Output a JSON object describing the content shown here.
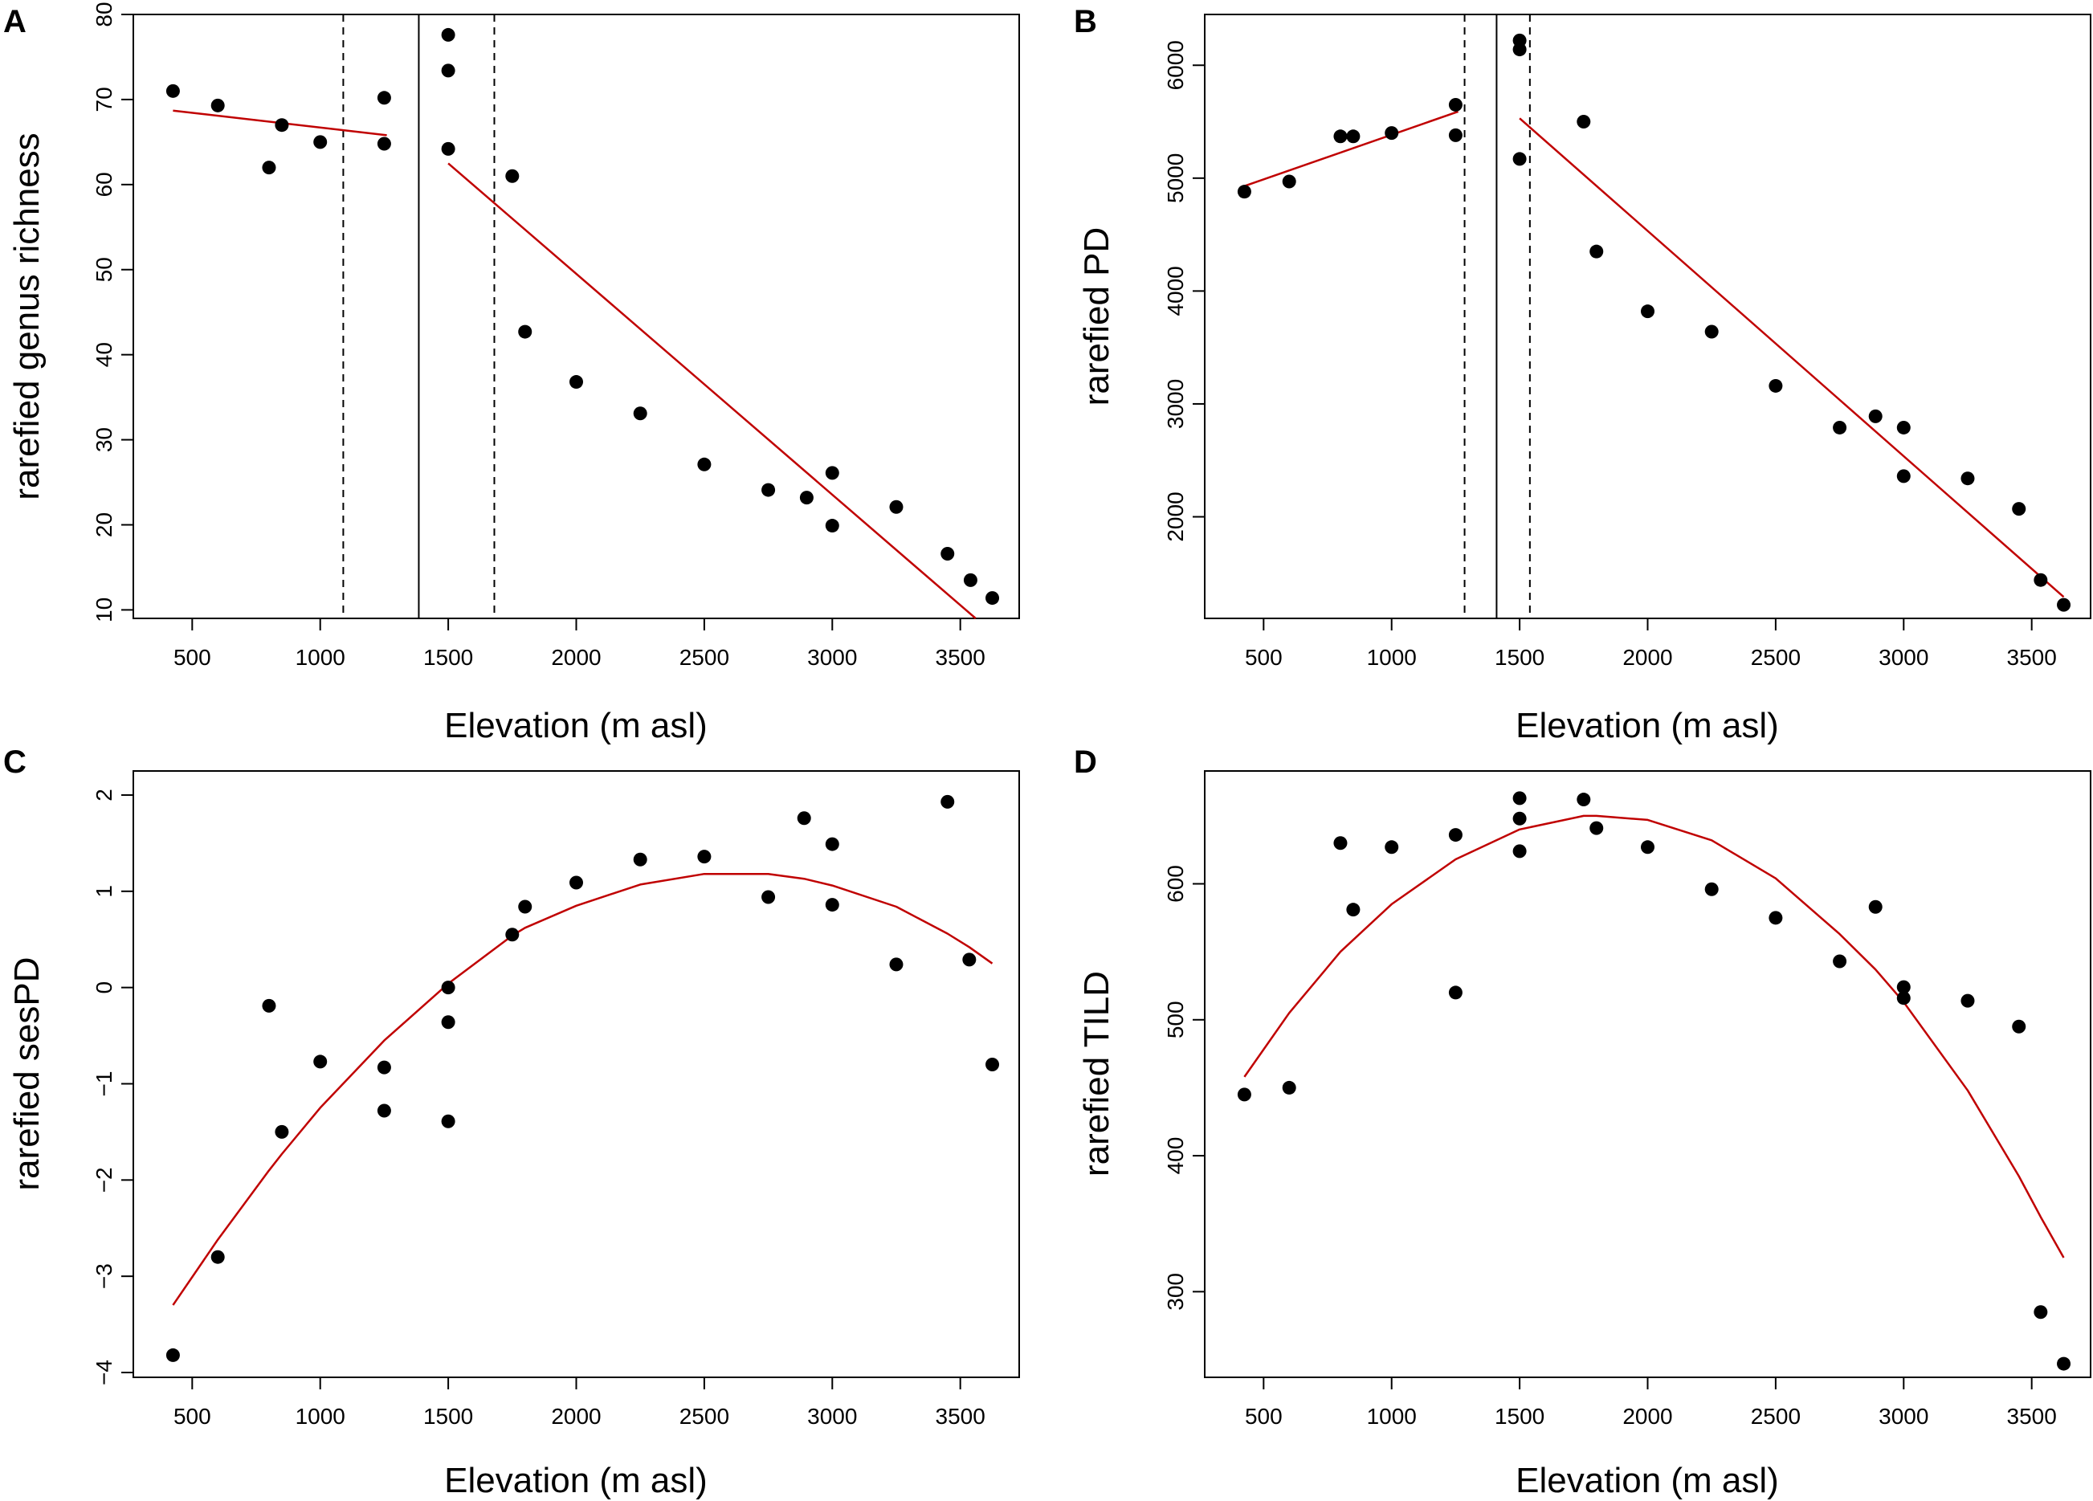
{
  "figure": {
    "background": "#ffffff",
    "point_color": "#000000",
    "fit_color": "#c00000"
  },
  "chart_data": [
    {
      "panel": "A",
      "type": "scatter",
      "xlabel": "Elevation (m asl)",
      "ylabel": "rarefied genus richness",
      "xlim": [
        270,
        3730
      ],
      "ylim": [
        9,
        80
      ],
      "xticks": [
        500,
        1000,
        1500,
        2000,
        2500,
        3000,
        3500
      ],
      "yticks": [
        10,
        20,
        30,
        40,
        50,
        60,
        70,
        80
      ],
      "points": [
        [
          425,
          71
        ],
        [
          600,
          69.3
        ],
        [
          800,
          62
        ],
        [
          850,
          67
        ],
        [
          1000,
          65
        ],
        [
          1250,
          70.2
        ],
        [
          1250,
          64.8
        ],
        [
          1500,
          77.6
        ],
        [
          1500,
          73.4
        ],
        [
          1500,
          64.2
        ],
        [
          1750,
          61
        ],
        [
          1800,
          42.7
        ],
        [
          2000,
          36.8
        ],
        [
          2250,
          33.1
        ],
        [
          2500,
          27.1
        ],
        [
          2750,
          24.1
        ],
        [
          2900,
          23.2
        ],
        [
          3000,
          26.1
        ],
        [
          3000,
          19.9
        ],
        [
          3250,
          22.1
        ],
        [
          3450,
          16.6
        ],
        [
          3540,
          13.5
        ],
        [
          3625,
          11.4
        ]
      ],
      "fits": [
        {
          "kind": "line",
          "points": [
            [
              425,
              68.7
            ],
            [
              1260,
              65.8
            ]
          ]
        },
        {
          "kind": "line",
          "points": [
            [
              1500,
              62.5
            ],
            [
              3560,
              9
            ]
          ]
        }
      ],
      "vlines": [
        {
          "x": 1385,
          "style": "solid"
        },
        {
          "x": 1090,
          "style": "dashed"
        },
        {
          "x": 1680,
          "style": "dashed"
        }
      ]
    },
    {
      "panel": "B",
      "type": "scatter",
      "xlabel": "Elevation (m asl)",
      "ylabel": "rarefied PD",
      "xlim": [
        270,
        3730
      ],
      "ylim": [
        1100,
        6450
      ],
      "xticks": [
        500,
        1000,
        1500,
        2000,
        2500,
        3000,
        3500
      ],
      "yticks": [
        2000,
        3000,
        4000,
        5000,
        6000
      ],
      "points": [
        [
          425,
          4880
        ],
        [
          600,
          4970
        ],
        [
          800,
          5370
        ],
        [
          850,
          5370
        ],
        [
          1000,
          5400
        ],
        [
          1250,
          5650
        ],
        [
          1250,
          5380
        ],
        [
          1500,
          6220
        ],
        [
          1500,
          6140
        ],
        [
          1500,
          5170
        ],
        [
          1750,
          5500
        ],
        [
          1800,
          4350
        ],
        [
          2000,
          3820
        ],
        [
          2250,
          3640
        ],
        [
          2500,
          3160
        ],
        [
          2750,
          2790
        ],
        [
          2890,
          2890
        ],
        [
          3000,
          2790
        ],
        [
          3000,
          2360
        ],
        [
          3250,
          2340
        ],
        [
          3450,
          2070
        ],
        [
          3535,
          1440
        ],
        [
          3625,
          1220
        ]
      ],
      "fits": [
        {
          "kind": "line",
          "points": [
            [
              425,
              4930
            ],
            [
              1260,
              5590
            ]
          ]
        },
        {
          "kind": "line",
          "points": [
            [
              1500,
              5530
            ],
            [
              3625,
              1290
            ]
          ]
        }
      ],
      "vlines": [
        {
          "x": 1410,
          "style": "solid"
        },
        {
          "x": 1285,
          "style": "dashed"
        },
        {
          "x": 1540,
          "style": "dashed"
        }
      ]
    },
    {
      "panel": "C",
      "type": "scatter",
      "xlabel": "Elevation (m asl)",
      "ylabel": "rarefied sesPD",
      "xlim": [
        270,
        3730
      ],
      "ylim": [
        -4.05,
        2.25
      ],
      "xticks": [
        500,
        1000,
        1500,
        2000,
        2500,
        3000,
        3500
      ],
      "yticks": [
        -4,
        -3,
        -2,
        -1,
        0,
        1,
        2
      ],
      "points": [
        [
          425,
          -3.82
        ],
        [
          600,
          -2.8
        ],
        [
          800,
          -0.19
        ],
        [
          850,
          -1.5
        ],
        [
          1000,
          -0.77
        ],
        [
          1250,
          -0.83
        ],
        [
          1250,
          -1.28
        ],
        [
          1500,
          0
        ],
        [
          1500,
          -0.36
        ],
        [
          1500,
          -1.39
        ],
        [
          1750,
          0.55
        ],
        [
          1800,
          0.84
        ],
        [
          2000,
          1.09
        ],
        [
          2250,
          1.33
        ],
        [
          2500,
          1.36
        ],
        [
          2750,
          0.94
        ],
        [
          2890,
          1.76
        ],
        [
          3000,
          1.49
        ],
        [
          3000,
          0.86
        ],
        [
          3250,
          0.24
        ],
        [
          3450,
          1.93
        ],
        [
          3535,
          0.29
        ],
        [
          3625,
          -0.8
        ]
      ],
      "fits": [
        {
          "kind": "curve",
          "points": [
            [
              425,
              -3.3
            ],
            [
              600,
              -2.62
            ],
            [
              800,
              -1.9
            ],
            [
              850,
              -1.73
            ],
            [
              1000,
              -1.25
            ],
            [
              1250,
              -0.55
            ],
            [
              1500,
              0.04
            ],
            [
              1750,
              0.54
            ],
            [
              1800,
              0.62
            ],
            [
              2000,
              0.85
            ],
            [
              2250,
              1.07
            ],
            [
              2500,
              1.18
            ],
            [
              2750,
              1.18
            ],
            [
              2890,
              1.13
            ],
            [
              3000,
              1.06
            ],
            [
              3250,
              0.84
            ],
            [
              3450,
              0.56
            ],
            [
              3535,
              0.42
            ],
            [
              3625,
              0.25
            ]
          ]
        }
      ],
      "vlines": []
    },
    {
      "panel": "D",
      "type": "scatter",
      "xlabel": "Elevation (m asl)",
      "ylabel": "rarefied TILD",
      "xlim": [
        270,
        3730
      ],
      "ylim": [
        237,
        683
      ],
      "xticks": [
        500,
        1000,
        1500,
        2000,
        2500,
        3000,
        3500
      ],
      "yticks": [
        300,
        400,
        500,
        600
      ],
      "points": [
        [
          425,
          445
        ],
        [
          600,
          450
        ],
        [
          800,
          630
        ],
        [
          850,
          581
        ],
        [
          1000,
          627
        ],
        [
          1250,
          636
        ],
        [
          1250,
          520
        ],
        [
          1500,
          663
        ],
        [
          1500,
          648
        ],
        [
          1500,
          624
        ],
        [
          1750,
          662
        ],
        [
          1800,
          641
        ],
        [
          2000,
          627
        ],
        [
          2250,
          596
        ],
        [
          2500,
          575
        ],
        [
          2750,
          543
        ],
        [
          2890,
          583
        ],
        [
          3000,
          524
        ],
        [
          3000,
          516
        ],
        [
          3250,
          514
        ],
        [
          3450,
          495
        ],
        [
          3535,
          285
        ],
        [
          3625,
          247
        ]
      ],
      "fits": [
        {
          "kind": "curve",
          "points": [
            [
              425,
              458
            ],
            [
              600,
              505
            ],
            [
              800,
              550
            ],
            [
              1000,
              585
            ],
            [
              1250,
              618
            ],
            [
              1500,
              640
            ],
            [
              1750,
              650
            ],
            [
              1800,
              650
            ],
            [
              2000,
              647
            ],
            [
              2250,
              632
            ],
            [
              2500,
              604
            ],
            [
              2750,
              563
            ],
            [
              2890,
              537
            ],
            [
              3000,
              513
            ],
            [
              3250,
              448
            ],
            [
              3450,
              385
            ],
            [
              3535,
              355
            ],
            [
              3625,
              325
            ]
          ]
        }
      ],
      "vlines": []
    }
  ]
}
